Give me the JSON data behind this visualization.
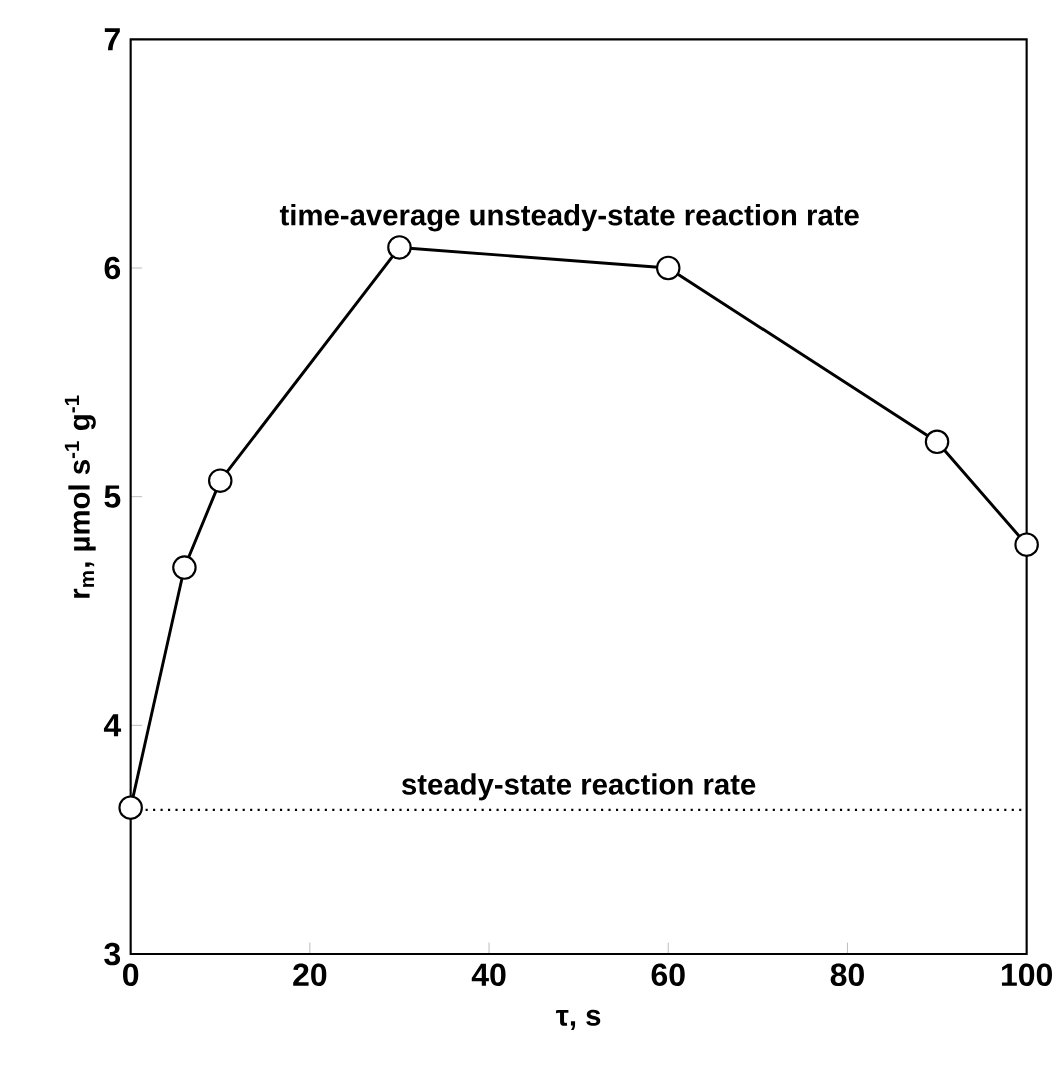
{
  "chart_data": {
    "type": "line",
    "xlabel": "τ, s",
    "ylabel": "r$_{m}$, µmol s$^{-1}$ g$^{-1}$",
    "x": [
      0,
      6,
      10,
      30,
      60,
      90,
      100
    ],
    "series": [
      {
        "color": "#000000",
        "values": [
          3.64,
          4.69,
          5.07,
          6.09,
          6.0,
          5.24,
          4.79
        ]
      }
    ],
    "xlim": [
      0,
      100
    ],
    "ylim": [
      3,
      7
    ],
    "xticks": [
      0,
      20,
      40,
      60,
      80,
      100
    ],
    "yticks": [
      3,
      4,
      5,
      6,
      7
    ],
    "marker": "circle",
    "line_style": "solid",
    "ref_lines": [
      {
        "axis": "y",
        "value": 3.63,
        "label": "steady-state reaction rate",
        "line_style": "dotted",
        "color": "#000000"
      }
    ],
    "annotations": [
      "time-average unsteady-state reaction rate"
    ]
  }
}
